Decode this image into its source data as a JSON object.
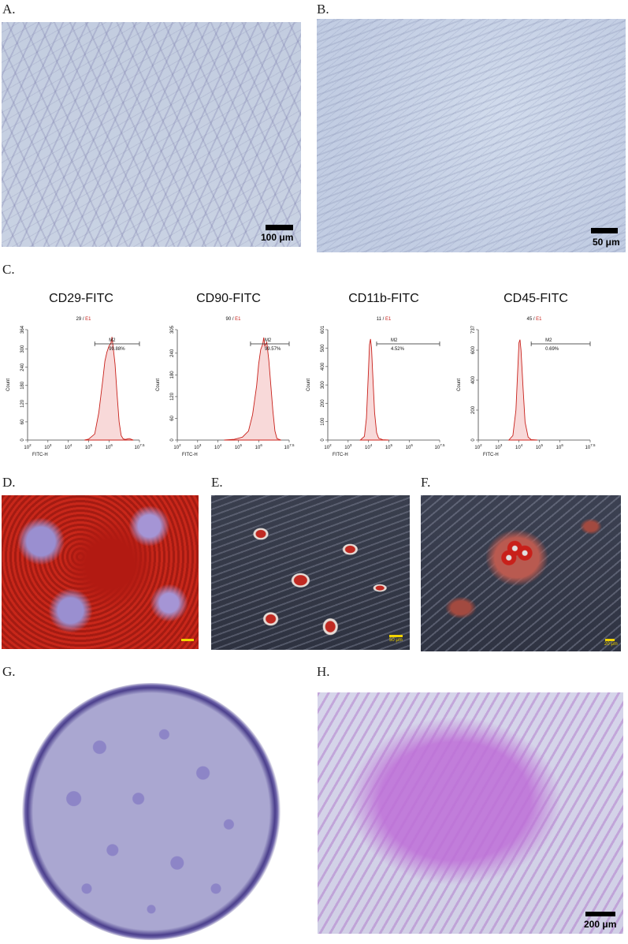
{
  "panels": {
    "A": {
      "label": "A.",
      "scale": "100 μm"
    },
    "B": {
      "label": "B.",
      "scale": "50 μm"
    },
    "C": {
      "label": "C."
    },
    "D": {
      "label": "D."
    },
    "E": {
      "label": "E.",
      "scale": "50 μm"
    },
    "F": {
      "label": "F.",
      "scale": "20 μm"
    },
    "G": {
      "label": "G."
    },
    "H": {
      "label": "H.",
      "scale": "200 μm"
    }
  },
  "chart_data": [
    {
      "type": "area",
      "title": "CD29-FITC",
      "count_label": "29",
      "event_label": "E1",
      "ylabel": "Count",
      "xlabel": "FITC-H",
      "ylim": [
        0,
        364
      ],
      "yticks": [
        0,
        60,
        120,
        180,
        240,
        300,
        364
      ],
      "ytick_labels": [
        "0",
        "60",
        "120",
        "180",
        "240",
        "300",
        "364"
      ],
      "xticks": [
        "10^2",
        "10^3",
        "10^4",
        "10^5",
        "10^6",
        "10^7.5"
      ],
      "gate": {
        "name": "M2",
        "percent": "99.88%",
        "from_log": 5.3,
        "to_log": 7.5
      },
      "curve_x_log": [
        4.8,
        5.0,
        5.3,
        5.5,
        5.7,
        5.8,
        5.9,
        6.0,
        6.1,
        6.15,
        6.2,
        6.3,
        6.4,
        6.5,
        6.6,
        6.7,
        6.8,
        7.0,
        7.2
      ],
      "curve_y": [
        0,
        3,
        20,
        90,
        200,
        260,
        290,
        310,
        320,
        340,
        310,
        250,
        150,
        60,
        15,
        4,
        2,
        5,
        0
      ]
    },
    {
      "type": "area",
      "title": "CD90-FITC",
      "count_label": "90",
      "event_label": "E1",
      "ylabel": "Count",
      "xlabel": "FITC-H",
      "ylim": [
        0,
        305
      ],
      "yticks": [
        0,
        60,
        120,
        180,
        240,
        305
      ],
      "ytick_labels": [
        "0",
        "60",
        "120",
        "180",
        "240",
        "305"
      ],
      "xticks": [
        "10^2",
        "10^3",
        "10^4",
        "10^5",
        "10^6",
        "10^7.5"
      ],
      "gate": {
        "name": "M2",
        "percent": "99.57%",
        "from_log": 5.6,
        "to_log": 7.5
      },
      "curve_x_log": [
        4.3,
        4.8,
        5.2,
        5.5,
        5.7,
        5.9,
        6.0,
        6.1,
        6.2,
        6.25,
        6.3,
        6.4,
        6.5,
        6.6,
        6.7,
        6.8,
        6.9,
        7.1
      ],
      "curve_y": [
        0,
        2,
        8,
        25,
        70,
        150,
        210,
        250,
        265,
        283,
        260,
        270,
        220,
        150,
        80,
        25,
        4,
        0
      ]
    },
    {
      "type": "area",
      "title": "CD11b-FITC",
      "count_label": "11",
      "event_label": "E1",
      "ylabel": "Count",
      "xlabel": "FITC-H",
      "ylim": [
        0,
        601
      ],
      "yticks": [
        0,
        100,
        200,
        300,
        400,
        500,
        601
      ],
      "ytick_labels": [
        "0",
        "100",
        "200",
        "300",
        "400",
        "500",
        "601"
      ],
      "xticks": [
        "10^2",
        "10^3",
        "10^4",
        "10^5",
        "10^6",
        "10^7.5"
      ],
      "gate": {
        "name": "M2",
        "percent": "4.52%",
        "from_log": 4.4,
        "to_log": 7.5
      },
      "curve_x_log": [
        3.6,
        3.8,
        3.9,
        4.0,
        4.05,
        4.1,
        4.15,
        4.2,
        4.3,
        4.4,
        4.5,
        4.7,
        5.0
      ],
      "curve_y": [
        0,
        20,
        120,
        380,
        520,
        550,
        500,
        380,
        150,
        40,
        10,
        2,
        0
      ]
    },
    {
      "type": "area",
      "title": "CD45-FITC",
      "count_label": "45",
      "event_label": "E1",
      "ylabel": "Count",
      "xlabel": "FITC-H",
      "ylim": [
        0,
        737
      ],
      "yticks": [
        0,
        200,
        400,
        600,
        737
      ],
      "ytick_labels": [
        "0",
        "200",
        "400",
        "600",
        "737"
      ],
      "xticks": [
        "10^2",
        "10^3",
        "10^4",
        "10^5",
        "10^6",
        "10^7.5"
      ],
      "gate": {
        "name": "M2",
        "percent": "0.69%",
        "from_log": 4.6,
        "to_log": 7.5
      },
      "curve_x_log": [
        3.5,
        3.7,
        3.85,
        3.95,
        4.0,
        4.05,
        4.1,
        4.2,
        4.3,
        4.45,
        4.6,
        4.9
      ],
      "curve_y": [
        0,
        30,
        200,
        500,
        650,
        670,
        600,
        350,
        120,
        20,
        3,
        0
      ]
    }
  ]
}
